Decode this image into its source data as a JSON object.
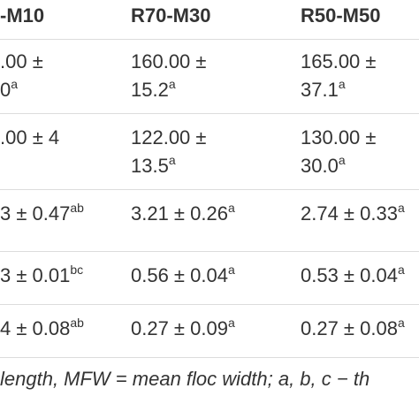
{
  "table": {
    "header": [
      "-M10",
      "R70-M30",
      "R50-M50"
    ],
    "rows": [
      [
        {
          "text": ".00 ± 0",
          "sup": "a"
        },
        {
          "text": "160.00 ± 15.2",
          "sup": "a"
        },
        {
          "text": "165.00 ± 37.1",
          "sup": "a"
        }
      ],
      [
        {
          "text": ".00 ± 4",
          "sup": ""
        },
        {
          "text": "122.00 ± 13.5",
          "sup": "a"
        },
        {
          "text": "130.00 ± 30.0",
          "sup": "a"
        }
      ],
      [
        {
          "text": "3 ± 0.47",
          "sup": "ab"
        },
        {
          "text": "3.21 ± 0.26",
          "sup": "a"
        },
        {
          "text": "2.74 ± 0.33",
          "sup": "a"
        }
      ],
      [
        {
          "text": "3 ± 0.01",
          "sup": "bc"
        },
        {
          "text": "0.56 ± 0.04",
          "sup": "a"
        },
        {
          "text": "0.53 ± 0.04",
          "sup": "a"
        }
      ],
      [
        {
          "text": "4 ± 0.08",
          "sup": "ab"
        },
        {
          "text": "0.27 ± 0.09",
          "sup": "a"
        },
        {
          "text": "0.27 ± 0.08",
          "sup": "a"
        }
      ]
    ]
  },
  "footnote": "length, MFW = mean floc width; a, b, c − th"
}
